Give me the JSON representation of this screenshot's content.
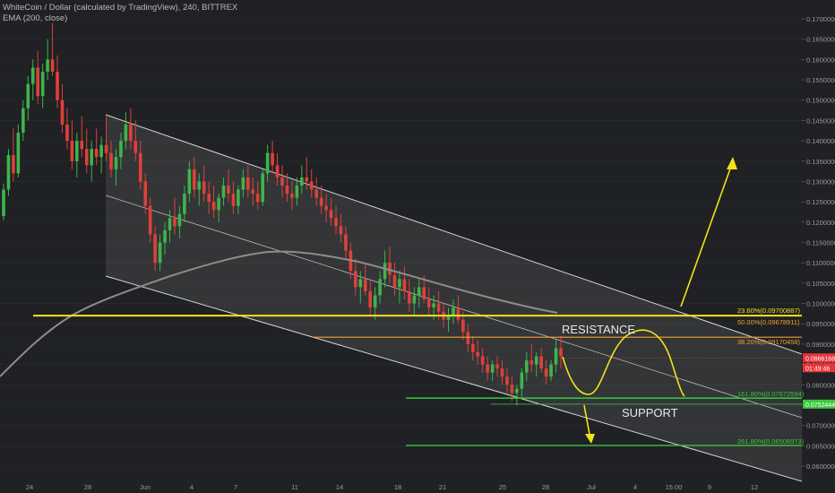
{
  "header": {
    "title": "WhiteCoin / Dollar (calculated by TradingView), 240, BITTREX",
    "indicator": "EMA (200, close)"
  },
  "colors": {
    "background": "#1f2124",
    "bull": "#3db54a",
    "bear": "#e0403a",
    "channel": "#d8d8d8",
    "ema": "#8c8c8c",
    "yellow": "#f2e21b",
    "orange": "#f0a030",
    "green_line": "#3cc83c",
    "price_tag": "#e8343a"
  },
  "chart_data": {
    "type": "candlestick",
    "price_axis": {
      "ticks": [
        "0.17000000",
        "0.16500000",
        "0.16000000",
        "0.15500000",
        "0.15000000",
        "0.14500000",
        "0.14000000",
        "0.13500000",
        "0.13000000",
        "0.12500000",
        "0.12000000",
        "0.11500000",
        "0.11000000",
        "0.10500000",
        "0.10000000",
        "0.09500000",
        "0.09000000",
        "0.08500000",
        "0.08000000",
        "0.07500000",
        "0.07000000",
        "0.06500000",
        "0.06000000"
      ],
      "range": [
        0.0585,
        0.173
      ]
    },
    "time_axis": {
      "ticks": [
        "24",
        "28",
        "Jun",
        "4",
        "7",
        "11",
        "14",
        "18",
        "21",
        "25",
        "28",
        "Jul",
        "4",
        "15:00",
        "9",
        "12"
      ]
    },
    "fib_levels": [
      {
        "label": "23.60%(0.09700887)",
        "value": 0.09700887,
        "color": "#f2e21b"
      },
      {
        "label": "50.00%(0.09678911)",
        "value": 0.09678911,
        "color": "#f0a030"
      },
      {
        "label": "38.20%(0.09170458)",
        "value": 0.09170458,
        "color": "#f0a030"
      },
      {
        "label": "161.80%(0.07672594)",
        "value": 0.07672594,
        "color": "#3cc83c"
      },
      {
        "label": "261.80%(0.06508973)",
        "value": 0.06508973,
        "color": "#3cc83c"
      }
    ],
    "price_tags": [
      {
        "label": "0.08661682",
        "value": 0.08661682,
        "color": "#e8343a"
      },
      {
        "label": "01:49:46",
        "color": "#e8343a"
      },
      {
        "label": "0.07524440",
        "value": 0.0752444,
        "color": "#3cc83c"
      }
    ],
    "annotations": {
      "resistance": "RESISTANCE",
      "support": "SUPPORT"
    },
    "ohlc": [
      [
        0.1215,
        0.1295,
        0.1205,
        0.128
      ],
      [
        0.128,
        0.138,
        0.1265,
        0.1365
      ],
      [
        0.1365,
        0.143,
        0.13,
        0.132
      ],
      [
        0.132,
        0.144,
        0.131,
        0.142
      ],
      [
        0.142,
        0.15,
        0.14,
        0.148
      ],
      [
        0.148,
        0.156,
        0.145,
        0.154
      ],
      [
        0.154,
        0.16,
        0.15,
        0.158
      ],
      [
        0.158,
        0.162,
        0.149,
        0.151
      ],
      [
        0.151,
        0.159,
        0.148,
        0.157
      ],
      [
        0.157,
        0.165,
        0.155,
        0.16
      ],
      [
        0.16,
        0.169,
        0.156,
        0.157
      ],
      [
        0.157,
        0.161,
        0.148,
        0.15
      ],
      [
        0.15,
        0.154,
        0.142,
        0.144
      ],
      [
        0.144,
        0.148,
        0.138,
        0.14
      ],
      [
        0.14,
        0.145,
        0.133,
        0.135
      ],
      [
        0.135,
        0.142,
        0.131,
        0.14
      ],
      [
        0.14,
        0.146,
        0.136,
        0.138
      ],
      [
        0.138,
        0.143,
        0.132,
        0.134
      ],
      [
        0.134,
        0.14,
        0.13,
        0.138
      ],
      [
        0.138,
        0.143,
        0.134,
        0.136
      ],
      [
        0.136,
        0.141,
        0.132,
        0.139
      ],
      [
        0.139,
        0.146,
        0.135,
        0.137
      ],
      [
        0.137,
        0.14,
        0.131,
        0.133
      ],
      [
        0.133,
        0.138,
        0.129,
        0.136
      ],
      [
        0.136,
        0.142,
        0.133,
        0.14
      ],
      [
        0.14,
        0.147,
        0.138,
        0.144
      ],
      [
        0.144,
        0.148,
        0.138,
        0.14
      ],
      [
        0.14,
        0.145,
        0.135,
        0.137
      ],
      [
        0.137,
        0.14,
        0.128,
        0.13
      ],
      [
        0.13,
        0.132,
        0.122,
        0.124
      ],
      [
        0.124,
        0.126,
        0.115,
        0.117
      ],
      [
        0.117,
        0.119,
        0.108,
        0.11
      ],
      [
        0.11,
        0.117,
        0.108,
        0.115
      ],
      [
        0.115,
        0.12,
        0.112,
        0.118
      ],
      [
        0.118,
        0.123,
        0.115,
        0.121
      ],
      [
        0.121,
        0.126,
        0.117,
        0.119
      ],
      [
        0.119,
        0.124,
        0.116,
        0.122
      ],
      [
        0.122,
        0.129,
        0.12,
        0.127
      ],
      [
        0.127,
        0.135,
        0.125,
        0.133
      ],
      [
        0.133,
        0.136,
        0.126,
        0.128
      ],
      [
        0.128,
        0.132,
        0.124,
        0.13
      ],
      [
        0.13,
        0.134,
        0.125,
        0.127
      ],
      [
        0.127,
        0.13,
        0.122,
        0.125
      ],
      [
        0.125,
        0.129,
        0.121,
        0.123
      ],
      [
        0.123,
        0.127,
        0.12,
        0.126
      ],
      [
        0.126,
        0.131,
        0.124,
        0.129
      ],
      [
        0.129,
        0.133,
        0.125,
        0.127
      ],
      [
        0.127,
        0.13,
        0.122,
        0.124
      ],
      [
        0.124,
        0.129,
        0.122,
        0.128
      ],
      [
        0.128,
        0.133,
        0.126,
        0.131
      ],
      [
        0.131,
        0.134,
        0.126,
        0.128
      ],
      [
        0.128,
        0.131,
        0.124,
        0.127
      ],
      [
        0.127,
        0.13,
        0.123,
        0.125
      ],
      [
        0.125,
        0.133,
        0.124,
        0.132
      ],
      [
        0.132,
        0.139,
        0.13,
        0.137
      ],
      [
        0.137,
        0.14,
        0.132,
        0.134
      ],
      [
        0.134,
        0.137,
        0.129,
        0.131
      ],
      [
        0.131,
        0.134,
        0.126,
        0.129
      ],
      [
        0.129,
        0.132,
        0.125,
        0.127
      ],
      [
        0.127,
        0.13,
        0.123,
        0.126
      ],
      [
        0.126,
        0.131,
        0.124,
        0.129
      ],
      [
        0.129,
        0.134,
        0.127,
        0.131
      ],
      [
        0.131,
        0.136,
        0.128,
        0.13
      ],
      [
        0.13,
        0.133,
        0.126,
        0.128
      ],
      [
        0.128,
        0.131,
        0.124,
        0.126
      ],
      [
        0.126,
        0.129,
        0.122,
        0.124
      ],
      [
        0.124,
        0.127,
        0.12,
        0.123
      ],
      [
        0.123,
        0.126,
        0.119,
        0.121
      ],
      [
        0.121,
        0.124,
        0.117,
        0.119
      ],
      [
        0.119,
        0.122,
        0.115,
        0.117
      ],
      [
        0.117,
        0.119,
        0.111,
        0.113
      ],
      [
        0.113,
        0.115,
        0.106,
        0.108
      ],
      [
        0.108,
        0.111,
        0.102,
        0.104
      ],
      [
        0.104,
        0.108,
        0.1,
        0.106
      ],
      [
        0.106,
        0.11,
        0.102,
        0.103
      ],
      [
        0.103,
        0.106,
        0.097,
        0.099
      ],
      [
        0.099,
        0.104,
        0.096,
        0.102
      ],
      [
        0.102,
        0.108,
        0.1,
        0.106
      ],
      [
        0.106,
        0.113,
        0.104,
        0.11
      ],
      [
        0.11,
        0.114,
        0.105,
        0.107
      ],
      [
        0.107,
        0.11,
        0.102,
        0.104
      ],
      [
        0.104,
        0.108,
        0.1,
        0.106
      ],
      [
        0.106,
        0.109,
        0.101,
        0.103
      ],
      [
        0.103,
        0.106,
        0.098,
        0.1
      ],
      [
        0.1,
        0.104,
        0.097,
        0.102
      ],
      [
        0.102,
        0.106,
        0.099,
        0.104
      ],
      [
        0.104,
        0.107,
        0.1,
        0.101
      ],
      [
        0.101,
        0.104,
        0.097,
        0.099
      ],
      [
        0.099,
        0.102,
        0.096,
        0.1
      ],
      [
        0.1,
        0.103,
        0.096,
        0.098
      ],
      [
        0.098,
        0.1,
        0.094,
        0.096
      ],
      [
        0.096,
        0.099,
        0.093,
        0.097
      ],
      [
        0.097,
        0.101,
        0.095,
        0.099
      ],
      [
        0.099,
        0.102,
        0.095,
        0.096
      ],
      [
        0.096,
        0.098,
        0.091,
        0.093
      ],
      [
        0.093,
        0.095,
        0.088,
        0.09
      ],
      [
        0.09,
        0.092,
        0.086,
        0.088
      ],
      [
        0.088,
        0.091,
        0.085,
        0.087
      ],
      [
        0.087,
        0.089,
        0.083,
        0.085
      ],
      [
        0.085,
        0.087,
        0.081,
        0.083
      ],
      [
        0.083,
        0.086,
        0.081,
        0.085
      ],
      [
        0.085,
        0.087,
        0.082,
        0.084
      ],
      [
        0.084,
        0.086,
        0.08,
        0.082
      ],
      [
        0.082,
        0.084,
        0.078,
        0.08
      ],
      [
        0.08,
        0.082,
        0.076,
        0.078
      ],
      [
        0.078,
        0.08,
        0.075,
        0.079
      ],
      [
        0.079,
        0.084,
        0.077,
        0.083
      ],
      [
        0.083,
        0.088,
        0.081,
        0.086
      ],
      [
        0.086,
        0.09,
        0.083,
        0.085
      ],
      [
        0.085,
        0.088,
        0.082,
        0.087
      ],
      [
        0.087,
        0.089,
        0.083,
        0.084
      ],
      [
        0.084,
        0.086,
        0.08,
        0.082
      ],
      [
        0.082,
        0.086,
        0.081,
        0.085
      ],
      [
        0.085,
        0.091,
        0.083,
        0.089
      ],
      [
        0.089,
        0.092,
        0.084,
        0.087
      ]
    ]
  }
}
